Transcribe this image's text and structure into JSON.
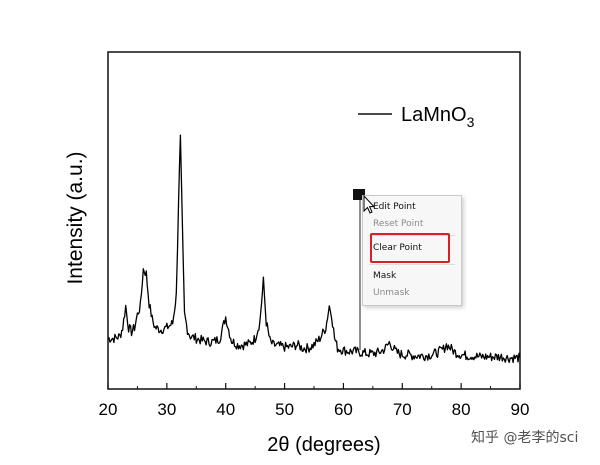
{
  "chart_data": {
    "type": "line",
    "xlabel_main": "2θ (degrees)",
    "ylabel": "Intensity (a.u.)",
    "xlim": [
      20,
      90
    ],
    "xticks": [
      "20",
      "30",
      "40",
      "50",
      "60",
      "70",
      "80",
      "90"
    ],
    "yticks_labeled": false,
    "grid": false,
    "legend_position": "top-right",
    "series": [
      {
        "name": "LaMnO",
        "name_subscript": "3",
        "color": "#000000",
        "x": [
          20,
          21,
          22,
          22.5,
          23,
          23.5,
          24,
          24.5,
          25,
          25.5,
          26,
          26.5,
          27,
          27.5,
          28,
          29,
          30,
          31,
          31.6,
          32.0,
          32.3,
          32.6,
          33.0,
          33.5,
          34,
          35,
          36,
          37,
          38,
          39,
          39.5,
          40,
          40.5,
          41,
          42,
          43,
          44,
          45,
          45.8,
          46.4,
          46.9,
          47.5,
          48,
          49,
          50,
          51,
          52,
          52.5,
          53,
          54,
          55,
          56,
          57,
          57.6,
          58,
          58.5,
          59,
          60,
          61,
          62,
          63,
          64,
          65,
          66,
          67,
          67.8,
          68.5,
          69,
          70,
          71,
          72,
          73,
          74,
          75,
          76,
          77,
          77.5,
          78,
          79,
          80,
          81,
          82,
          83,
          84,
          85,
          86,
          87,
          88,
          89,
          90
        ],
        "y": [
          0.2,
          0.2,
          0.22,
          0.3,
          0.5,
          0.3,
          0.26,
          0.3,
          0.42,
          0.5,
          0.84,
          0.8,
          0.52,
          0.38,
          0.3,
          0.28,
          0.3,
          0.34,
          0.6,
          1.5,
          2.05,
          1.3,
          0.42,
          0.28,
          0.22,
          0.2,
          0.18,
          0.17,
          0.17,
          0.2,
          0.3,
          0.4,
          0.28,
          0.18,
          0.14,
          0.14,
          0.15,
          0.2,
          0.35,
          0.73,
          0.35,
          0.18,
          0.14,
          0.13,
          0.12,
          0.12,
          0.14,
          0.13,
          0.11,
          0.11,
          0.14,
          0.2,
          0.3,
          0.5,
          0.42,
          0.2,
          0.11,
          0.09,
          0.08,
          0.08,
          0.07,
          0.06,
          0.06,
          0.07,
          0.1,
          0.16,
          0.11,
          0.07,
          0.05,
          0.05,
          0.04,
          0.04,
          0.04,
          0.05,
          0.07,
          0.1,
          0.14,
          0.12,
          0.07,
          0.05,
          0.04,
          0.04,
          0.03,
          0.03,
          0.03,
          0.03,
          0.03,
          0.02,
          0.02,
          0.02
        ]
      }
    ],
    "marker_x": 62.5
  },
  "context_menu": {
    "items": [
      {
        "label": "Edit Point",
        "enabled": true
      },
      {
        "label": "Reset Point",
        "enabled": false
      },
      {
        "label": "Clear Point",
        "enabled": true,
        "highlighted": true
      },
      {
        "label": "Mask",
        "enabled": true
      },
      {
        "label": "Unmask",
        "enabled": false
      }
    ],
    "highlight_color": "#d6202a"
  },
  "cursor": {
    "icon": "arrow-cursor-icon"
  },
  "watermark": {
    "text": "知乎 @老李的sci"
  }
}
